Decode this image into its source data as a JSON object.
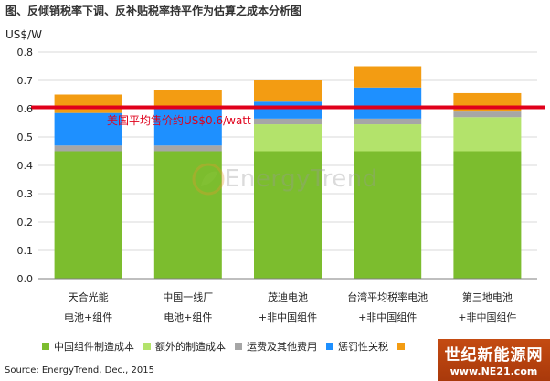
{
  "title": "图、反倾销税率下调、反补贴税率持平作为估算之成本分析图",
  "source": "Source: EnergyTrend, Dec., 2015",
  "watermark": "EnergyTrend",
  "site_logo": {
    "line1": "世纪新能源网",
    "line2": "www.NE21.com"
  },
  "colors": {
    "series": [
      "#7cbd2e",
      "#b3e36b",
      "#a6a6a6",
      "#1e90ff",
      "#f39c12"
    ],
    "reference": "#e0001b",
    "grid": "#d9d9d9"
  },
  "chart_data": {
    "type": "bar",
    "stacked": true,
    "title": "图、反倾销税率下调、反补贴税率持平作为估算之成本分析图",
    "ylabel": "US$/W",
    "ylim": [
      0,
      0.8
    ],
    "yticks": [
      "0.0",
      "0.1",
      "0.2",
      "0.3",
      "0.4",
      "0.5",
      "0.6",
      "0.7",
      "0.8"
    ],
    "categories": [
      [
        "天合光能",
        "电池+组件"
      ],
      [
        "中国一线厂",
        "电池+组件"
      ],
      [
        "茂迪电池",
        "+非中国组件"
      ],
      [
        "台湾平均税率电池",
        "+非中国组件"
      ],
      [
        "第三地电池",
        "+非中国组件"
      ]
    ],
    "series": [
      {
        "name": "中国组件制造成本",
        "values": [
          0.45,
          0.45,
          0.45,
          0.45,
          0.45
        ]
      },
      {
        "name": "额外的制造成本",
        "values": [
          0.0,
          0.0,
          0.095,
          0.095,
          0.12
        ]
      },
      {
        "name": "运费及其他费用",
        "values": [
          0.02,
          0.02,
          0.02,
          0.02,
          0.02
        ]
      },
      {
        "name": "惩罚性关税",
        "values": [
          0.115,
          0.13,
          0.06,
          0.11,
          0.0
        ]
      },
      {
        "name": "",
        "values": [
          0.065,
          0.065,
          0.075,
          0.075,
          0.065
        ]
      }
    ],
    "reference_line": {
      "value": 0.6,
      "label": "美国平均售价约US$0.6/watt"
    },
    "grid": true,
    "legend": "bottom"
  }
}
